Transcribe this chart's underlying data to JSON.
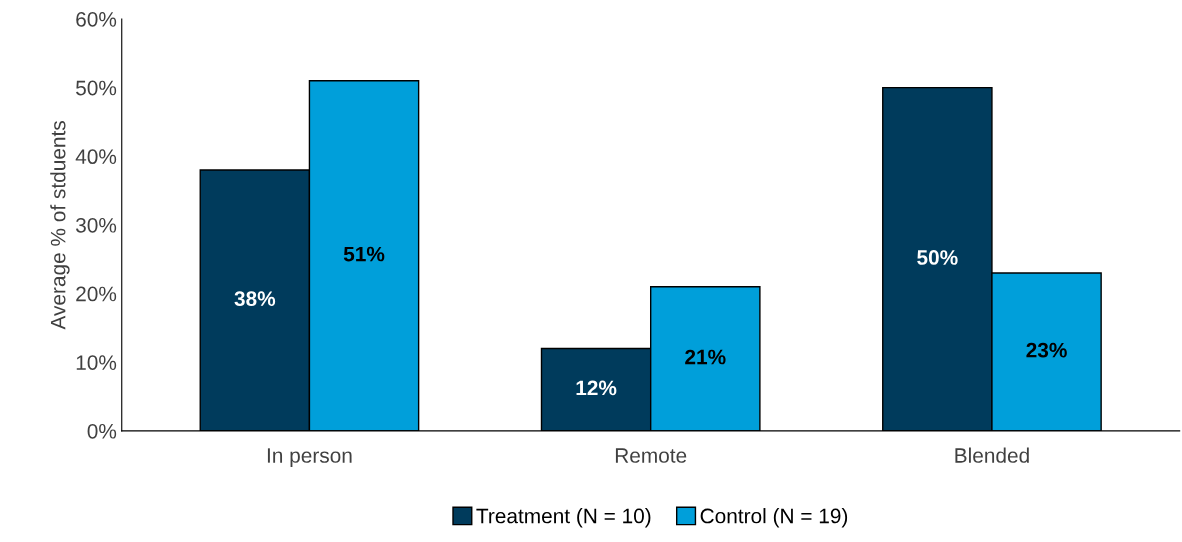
{
  "chart_data": {
    "type": "bar",
    "ylabel": "Average % of stduents",
    "categories": [
      "In person",
      "Remote",
      "Blended"
    ],
    "series": [
      {
        "name": "Treatment (N = 10)",
        "color": "#003b5c",
        "values": [
          38,
          12,
          50
        ],
        "value_labels": [
          "38%",
          "12%",
          "50%"
        ]
      },
      {
        "name": "Control (N = 19)",
        "color": "#009fda",
        "values": [
          51,
          21,
          23
        ],
        "value_labels": [
          "51%",
          "21%",
          "23%"
        ]
      }
    ],
    "ylim": [
      0,
      60
    ],
    "yticks": [
      {
        "value": 0,
        "label": "0%"
      },
      {
        "value": 10,
        "label": "10%"
      },
      {
        "value": 20,
        "label": "20%"
      },
      {
        "value": 30,
        "label": "30%"
      },
      {
        "value": 40,
        "label": "40%"
      },
      {
        "value": 50,
        "label": "50%"
      },
      {
        "value": 60,
        "label": "60%"
      }
    ],
    "grid": false,
    "legend": "bottom"
  }
}
